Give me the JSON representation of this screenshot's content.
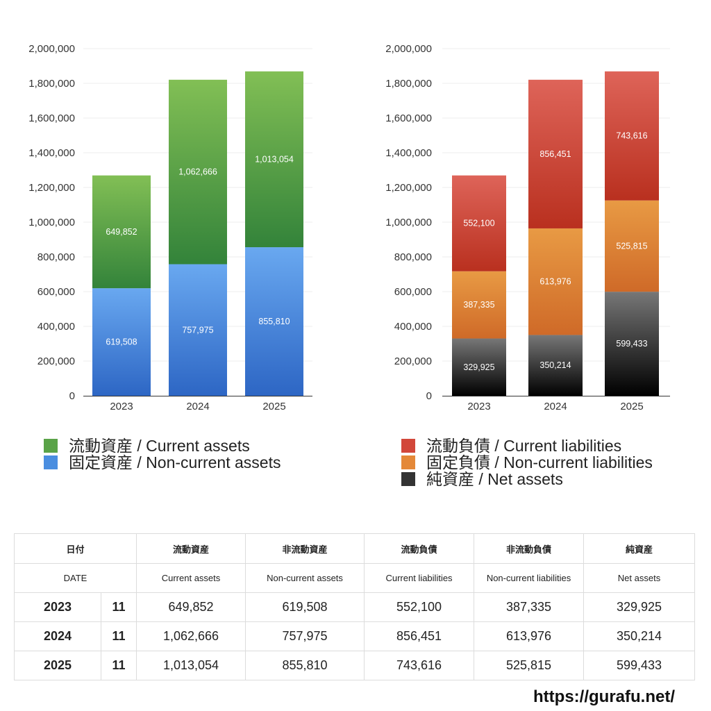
{
  "chart_data": [
    {
      "type": "bar",
      "stacked": true,
      "title": "",
      "categories": [
        "2023",
        "2024",
        "2025"
      ],
      "ylim": [
        0,
        2000000
      ],
      "yticks": [
        "0",
        "200,000",
        "400,000",
        "600,000",
        "800,000",
        "1,000,000",
        "1,200,000",
        "1,400,000",
        "1,600,000",
        "1,800,000",
        "2,000,000"
      ],
      "series": [
        {
          "name": "固定資産 / Non-current assets",
          "values": [
            619508,
            757975,
            855810
          ],
          "labels": [
            "619,508",
            "757,975",
            "855,810"
          ],
          "color_top": "#69a8f0",
          "color_bottom": "#2d66c4"
        },
        {
          "name": "流動資産 / Current assets",
          "values": [
            649852,
            1062666,
            1013054
          ],
          "labels": [
            "649,852",
            "1,062,666",
            "1,013,054"
          ],
          "color_top": "#82bf55",
          "color_bottom": "#33833a"
        }
      ],
      "legend": [
        "流動資産 / Current assets",
        "固定資産 / Non-current assets"
      ]
    },
    {
      "type": "bar",
      "stacked": true,
      "title": "",
      "categories": [
        "2023",
        "2024",
        "2025"
      ],
      "ylim": [
        0,
        2000000
      ],
      "yticks": [
        "0",
        "200,000",
        "400,000",
        "600,000",
        "800,000",
        "1,000,000",
        "1,200,000",
        "1,400,000",
        "1,600,000",
        "1,800,000",
        "2,000,000"
      ],
      "series": [
        {
          "name": "純資産 / Net assets",
          "values": [
            329925,
            350214,
            599433
          ],
          "labels": [
            "329,925",
            "350,214",
            "599,433"
          ],
          "color_top": "#777777",
          "color_bottom": "#000000"
        },
        {
          "name": "固定負債 / Non-current liabilities",
          "values": [
            387335,
            613976,
            525815
          ],
          "labels": [
            "387,335",
            "613,976",
            "525,815"
          ],
          "color_top": "#e89a44",
          "color_bottom": "#cf6a28"
        },
        {
          "name": "流動負債 / Current liabilities",
          "values": [
            552100,
            856451,
            743616
          ],
          "labels": [
            "552,100",
            "856,451",
            "743,616"
          ],
          "color_top": "#de6459",
          "color_bottom": "#b9301f"
        }
      ],
      "legend": [
        "流動負債 / Current liabilities",
        "固定負債 / Non-current liabilities",
        "純資産 / Net assets"
      ]
    }
  ],
  "legend_colors": {
    "current_assets": "#5aa348",
    "non_current_assets": "#4a8ee0",
    "current_liabilities": "#d2473a",
    "non_current_liabilities": "#e48838",
    "net_assets": "#333333"
  },
  "table": {
    "header_jp": [
      "日付",
      "流動資産",
      "非流動資産",
      "流動負債",
      "非流動負債",
      "純資産"
    ],
    "header_en": [
      "DATE",
      "Current assets",
      "Non-current assets",
      "Current liabilities",
      "Non-current liabilities",
      "Net assets"
    ],
    "rows": [
      {
        "year": "2023",
        "month": "11",
        "values": [
          "649,852",
          "619,508",
          "552,100",
          "387,335",
          "329,925"
        ]
      },
      {
        "year": "2024",
        "month": "11",
        "values": [
          "1,062,666",
          "757,975",
          "856,451",
          "613,976",
          "350,214"
        ]
      },
      {
        "year": "2025",
        "month": "11",
        "values": [
          "1,013,054",
          "855,810",
          "743,616",
          "525,815",
          "599,433"
        ]
      }
    ]
  },
  "source_url": "https://gurafu.net/"
}
